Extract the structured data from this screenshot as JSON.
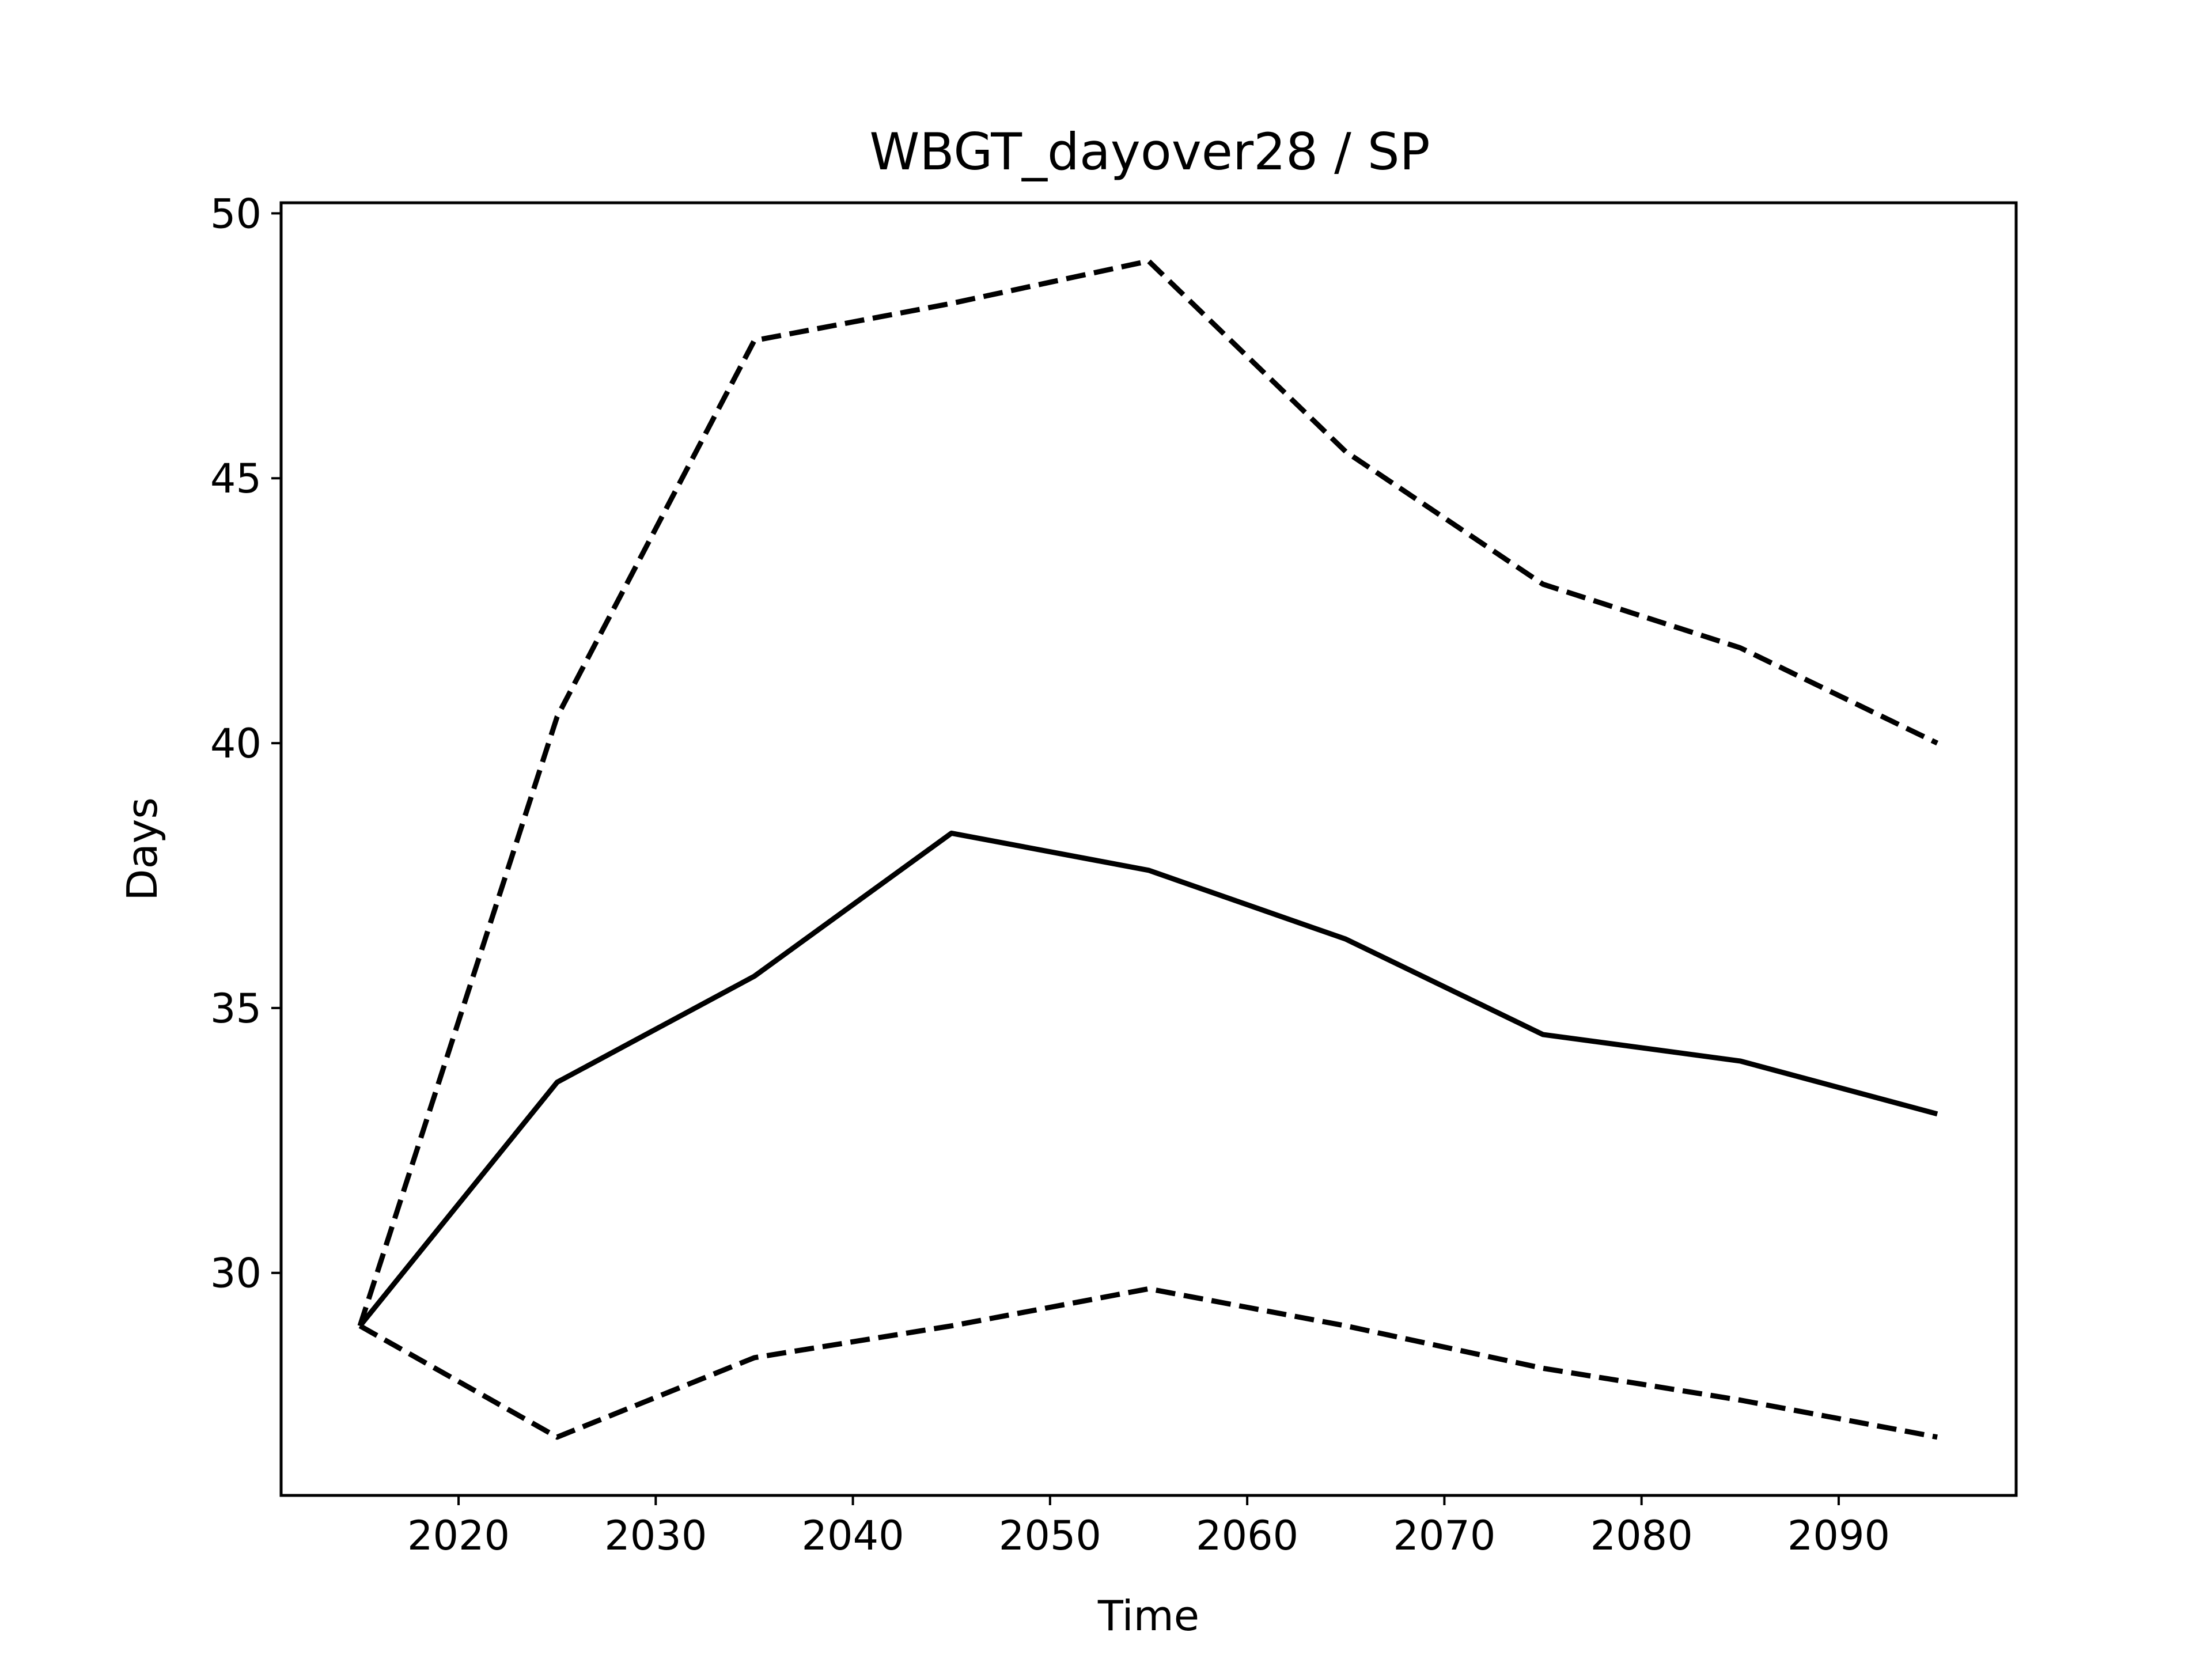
{
  "chart_data": {
    "type": "line",
    "title": "WBGT_dayover28 / SP",
    "xlabel": "Time",
    "ylabel": "Days",
    "xlim": [
      2011,
      2099
    ],
    "ylim": [
      25.8,
      50.2
    ],
    "xticks": [
      2020,
      2030,
      2040,
      2050,
      2060,
      2070,
      2080,
      2090
    ],
    "yticks": [
      30,
      35,
      40,
      45,
      50
    ],
    "grid": false,
    "legend": "none",
    "x": [
      2015,
      2025,
      2035,
      2045,
      2055,
      2065,
      2075,
      2085,
      2095
    ],
    "series": [
      {
        "style": "dashed",
        "color": "#000000",
        "values": [
          29.0,
          40.5,
          47.6,
          48.3,
          49.1,
          45.5,
          43.0,
          41.8,
          40.0
        ]
      },
      {
        "style": "solid",
        "color": "#000000",
        "values": [
          29.0,
          33.6,
          35.6,
          38.3,
          37.6,
          36.3,
          34.5,
          34.0,
          33.0
        ]
      },
      {
        "style": "dashed",
        "color": "#000000",
        "values": [
          29.0,
          26.9,
          28.4,
          29.0,
          29.7,
          29.0,
          28.2,
          27.6,
          26.9
        ]
      }
    ]
  }
}
